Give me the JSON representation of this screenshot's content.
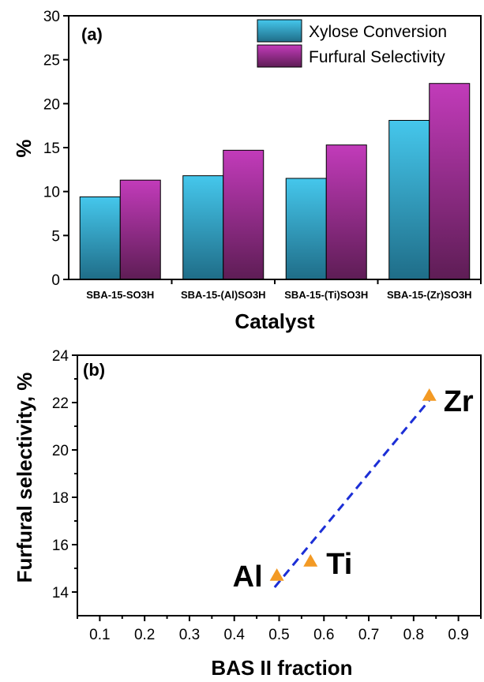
{
  "chart_data": [
    {
      "type": "bar",
      "panel_label": "(a)",
      "xlabel": "Catalyst",
      "ylabel": "%",
      "ylim": [
        0,
        30
      ],
      "yticks": [
        0,
        5,
        10,
        15,
        20,
        25,
        30
      ],
      "categories": [
        "SBA-15-SO3H",
        "SBA-15-(Al)SO3H",
        "SBA-15-(Ti)SO3H",
        "SBA-15-(Zr)SO3H"
      ],
      "series": [
        {
          "name": "Xylose Conversion",
          "values": [
            9.4,
            11.8,
            11.5,
            18.1
          ],
          "color_top": "#45c7ec",
          "color_bottom": "#1f6d88"
        },
        {
          "name": "Furfural Selectivity",
          "values": [
            11.3,
            14.7,
            15.3,
            22.3
          ],
          "color_top": "#c23bba",
          "color_bottom": "#5e1d55"
        }
      ],
      "legend_position": "top-right"
    },
    {
      "type": "scatter",
      "panel_label": "(b)",
      "xlabel": "BAS II fraction",
      "ylabel": "Furfural selectivity, %",
      "xlim": [
        0.05,
        0.95
      ],
      "ylim": [
        13,
        24
      ],
      "xticks": [
        "0.1",
        "0.2",
        "0.3",
        "0.4",
        "0.5",
        "0.6",
        "0.7",
        "0.8",
        "0.9"
      ],
      "yticks": [
        "14",
        "16",
        "18",
        "20",
        "22",
        "24"
      ],
      "points": [
        {
          "label": "Al",
          "x": 0.495,
          "y": 14.7
        },
        {
          "label": "Ti",
          "x": 0.57,
          "y": 15.3
        },
        {
          "label": "Zr",
          "x": 0.835,
          "y": 22.3
        }
      ],
      "fit_line": {
        "x": [
          0.49,
          0.835
        ],
        "y": [
          14.2,
          22.1
        ]
      },
      "marker_color": "#f39a24",
      "line_color": "#1c2fd6"
    }
  ]
}
